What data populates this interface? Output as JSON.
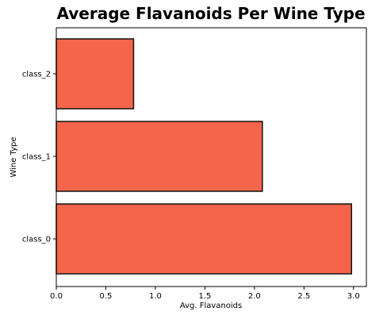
{
  "chart_data": {
    "type": "bar",
    "orientation": "horizontal",
    "title": "Average Flavanoids Per Wine Type",
    "xlabel": "Avg. Flavanoids",
    "ylabel": "Wine Type",
    "categories": [
      "class_0",
      "class_1",
      "class_2"
    ],
    "values": [
      2.98,
      2.08,
      0.78
    ],
    "xlim": [
      0,
      3.13
    ],
    "xticks": [
      "0.0",
      "0.5",
      "1.0",
      "1.5",
      "2.0",
      "2.5",
      "3.0"
    ],
    "grid": false,
    "legend": "none",
    "bar_color": "#f4654b",
    "edge_color": "#111111"
  }
}
